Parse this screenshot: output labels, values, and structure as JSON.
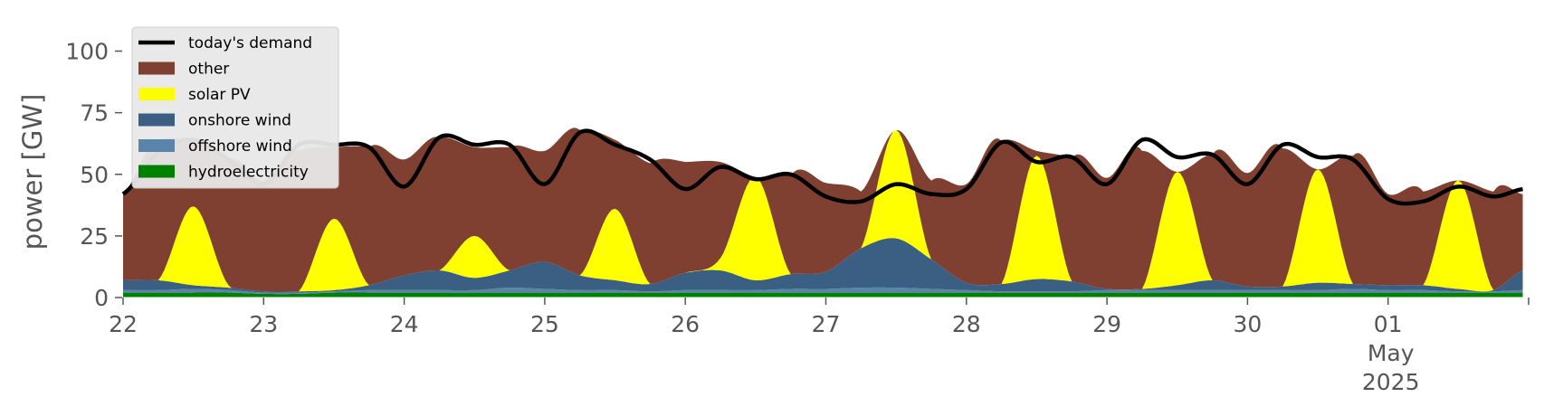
{
  "chart_data": {
    "type": "area",
    "ylabel": "power [GW]",
    "ylim": [
      0,
      120
    ],
    "yticks": [
      0,
      25,
      50,
      75,
      100
    ],
    "xlim": [
      "2025-04-22",
      "2025-05-02"
    ],
    "xticks": [
      {
        "date": "2025-04-22",
        "label": "22",
        "sub": []
      },
      {
        "date": "2025-04-23",
        "label": "23",
        "sub": []
      },
      {
        "date": "2025-04-24",
        "label": "24",
        "sub": []
      },
      {
        "date": "2025-04-25",
        "label": "25",
        "sub": []
      },
      {
        "date": "2025-04-26",
        "label": "26",
        "sub": []
      },
      {
        "date": "2025-04-27",
        "label": "27",
        "sub": []
      },
      {
        "date": "2025-04-28",
        "label": "28",
        "sub": []
      },
      {
        "date": "2025-04-29",
        "label": "29",
        "sub": []
      },
      {
        "date": "2025-04-30",
        "label": "30",
        "sub": []
      },
      {
        "date": "2025-05-01",
        "label": "01",
        "sub": [
          "May",
          "2025"
        ]
      }
    ],
    "grid": false,
    "legend_position": "upper-left",
    "x": [
      "04-22 00:00",
      "04-22 06:00",
      "04-22 12:00",
      "04-22 18:00",
      "04-23 00:00",
      "04-23 06:00",
      "04-23 12:00",
      "04-23 18:00",
      "04-24 00:00",
      "04-24 06:00",
      "04-24 12:00",
      "04-24 18:00",
      "04-25 00:00",
      "04-25 06:00",
      "04-25 12:00",
      "04-25 18:00",
      "04-26 00:00",
      "04-26 06:00",
      "04-26 12:00",
      "04-26 18:00",
      "04-27 00:00",
      "04-27 06:00",
      "04-27 12:00",
      "04-27 18:00",
      "04-28 00:00",
      "04-28 06:00",
      "04-28 12:00",
      "04-28 18:00",
      "04-29 00:00",
      "04-29 06:00",
      "04-29 12:00",
      "04-29 18:00",
      "04-30 00:00",
      "04-30 06:00",
      "04-30 12:00",
      "04-30 18:00",
      "05-01 00:00",
      "05-01 06:00",
      "05-01 12:00",
      "05-01 18:00",
      "05-01 23:00"
    ],
    "series": [
      {
        "name": "hydroelectricity",
        "color": "#008000",
        "kind": "area",
        "values": [
          2,
          2,
          2,
          2,
          1.5,
          1.5,
          2,
          2,
          2,
          2,
          2,
          2,
          2,
          2,
          2,
          2,
          2,
          2,
          2,
          2,
          2,
          2,
          2,
          2,
          2,
          2,
          2,
          2,
          2,
          2,
          2,
          2,
          2,
          2,
          2,
          2,
          2,
          2,
          2,
          2,
          2
        ]
      },
      {
        "name": "offshore wind",
        "color": "#5b84aa",
        "kind": "area",
        "values": [
          1,
          1,
          1.5,
          1,
          0.5,
          0.5,
          0.5,
          1,
          1,
          1,
          1,
          2,
          1.5,
          1,
          1,
          0.5,
          1,
          1,
          1,
          1.5,
          1.5,
          2,
          2,
          1.5,
          1,
          0.5,
          0.5,
          0.5,
          1,
          1,
          1,
          1,
          1,
          1,
          1,
          1.5,
          1,
          1,
          0.5,
          0.5,
          1
        ]
      },
      {
        "name": "onshore wind",
        "color": "#3a5f82",
        "kind": "area",
        "values": [
          4,
          4,
          1.5,
          1,
          0.5,
          0.5,
          0.5,
          2,
          6,
          8,
          5,
          7,
          11,
          6,
          4,
          3,
          7,
          8,
          4,
          6,
          7,
          16,
          20,
          12,
          3,
          3,
          5,
          4,
          0.5,
          0.5,
          2,
          4,
          1.5,
          1.5,
          3,
          2,
          2,
          2,
          1,
          0.5,
          8
        ]
      },
      {
        "name": "solar PV",
        "color": "#ffff00",
        "kind": "area",
        "values": [
          0,
          0,
          32,
          1,
          0,
          0,
          29,
          0,
          0,
          0,
          17,
          0,
          0,
          0,
          29,
          0,
          0,
          5,
          42,
          0,
          0,
          0,
          44,
          0,
          0,
          0,
          50,
          0,
          0,
          0,
          46,
          0,
          0,
          0,
          46,
          0,
          0,
          0,
          44,
          0,
          0
        ]
      },
      {
        "name": "other",
        "color": "#7f4031",
        "kind": "area",
        "values": [
          35,
          56,
          26,
          52,
          45,
          57,
          29,
          56,
          47,
          54,
          36,
          50,
          45,
          59,
          28,
          49,
          45,
          39,
          0,
          40,
          36,
          23,
          0,
          32,
          40,
          58,
          2,
          50,
          45,
          56,
          0,
          51,
          46,
          56,
          0,
          52,
          37,
          38,
          0,
          40,
          31
        ]
      },
      {
        "name": "today's demand",
        "color": "#000000",
        "kind": "line",
        "values": [
          42,
          59,
          64,
          56,
          46,
          62,
          62,
          61,
          45,
          65,
          62,
          62,
          46,
          67,
          62,
          56,
          44,
          53,
          48,
          50,
          41,
          39,
          46,
          42,
          44,
          63,
          55,
          57,
          46,
          64,
          57,
          58,
          46,
          62,
          57,
          56,
          40,
          39,
          45,
          41,
          44
        ]
      }
    ]
  },
  "legend": {
    "entries": [
      {
        "label": "today's demand",
        "color": "#000000",
        "kind": "line"
      },
      {
        "label": "other",
        "color": "#7f4031",
        "kind": "patch"
      },
      {
        "label": "solar PV",
        "color": "#ffff00",
        "kind": "patch"
      },
      {
        "label": "onshore wind",
        "color": "#3a5f82",
        "kind": "patch"
      },
      {
        "label": "offshore wind",
        "color": "#5b84aa",
        "kind": "patch"
      },
      {
        "label": "hydroelectricity",
        "color": "#008000",
        "kind": "patch"
      }
    ]
  }
}
